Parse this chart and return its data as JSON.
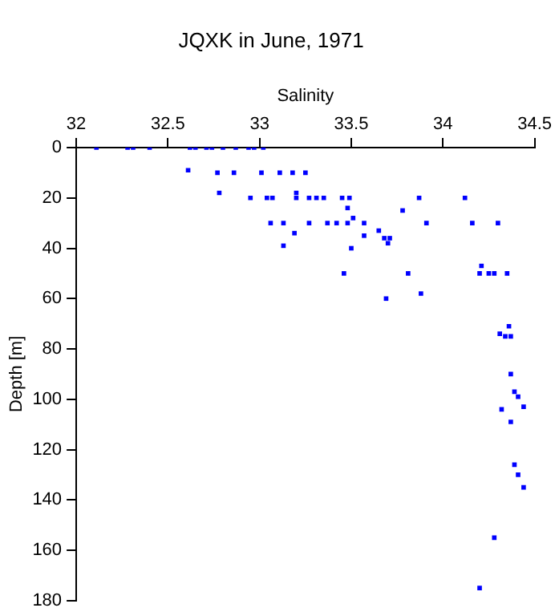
{
  "chart_data": {
    "type": "scatter",
    "title": "JQXK in June, 1971",
    "xlabel": "Salinity",
    "ylabel": "Depth [m]",
    "xlim": [
      32,
      34.5
    ],
    "xticks": [
      32,
      32.5,
      33,
      33.5,
      34,
      34.5
    ],
    "ylim": [
      180,
      0
    ],
    "yticks": [
      0,
      20,
      40,
      60,
      80,
      100,
      120,
      140,
      160,
      180
    ],
    "grid": false,
    "legend": false,
    "marker": "square",
    "series": [
      {
        "color": "#0000ff",
        "x": [
          32.11,
          32.28,
          32.31,
          32.4,
          32.62,
          32.65,
          32.71,
          32.74,
          32.8,
          32.87,
          32.94,
          32.97,
          33.02,
          32.61,
          32.77,
          32.86,
          33.01,
          33.11,
          33.18,
          33.25,
          32.78,
          33.2,
          32.95,
          33.04,
          33.07,
          33.2,
          33.27,
          33.31,
          33.35,
          33.45,
          33.49,
          33.87,
          34.12,
          33.48,
          33.78,
          33.51,
          33.06,
          33.13,
          33.27,
          33.37,
          33.42,
          33.48,
          33.57,
          33.91,
          34.16,
          34.3,
          33.19,
          33.13,
          33.65,
          33.57,
          33.68,
          33.71,
          33.7,
          33.5,
          34.21,
          33.46,
          33.81,
          34.2,
          34.25,
          34.28,
          34.35,
          33.88,
          33.69,
          34.36,
          34.31,
          34.34,
          34.37,
          34.37,
          34.39,
          34.41,
          34.44,
          34.32,
          34.37,
          34.39,
          34.41,
          34.44,
          34.28,
          34.2
        ],
        "values": [
          0,
          0,
          0,
          0,
          0,
          0,
          0,
          0,
          0,
          0,
          0,
          0,
          0,
          9,
          10,
          10,
          10,
          10,
          10,
          10,
          18,
          18,
          20,
          20,
          20,
          20,
          20,
          20,
          20,
          20,
          20,
          20,
          20,
          24,
          25,
          28,
          30,
          30,
          30,
          30,
          30,
          30,
          30,
          30,
          30,
          30,
          34,
          39,
          33,
          35,
          36,
          36,
          38,
          40,
          47,
          50,
          50,
          50,
          50,
          50,
          50,
          58,
          60,
          71,
          74,
          75,
          75,
          90,
          97,
          99,
          103,
          104,
          109,
          126,
          130,
          135,
          155,
          175
        ]
      }
    ]
  }
}
